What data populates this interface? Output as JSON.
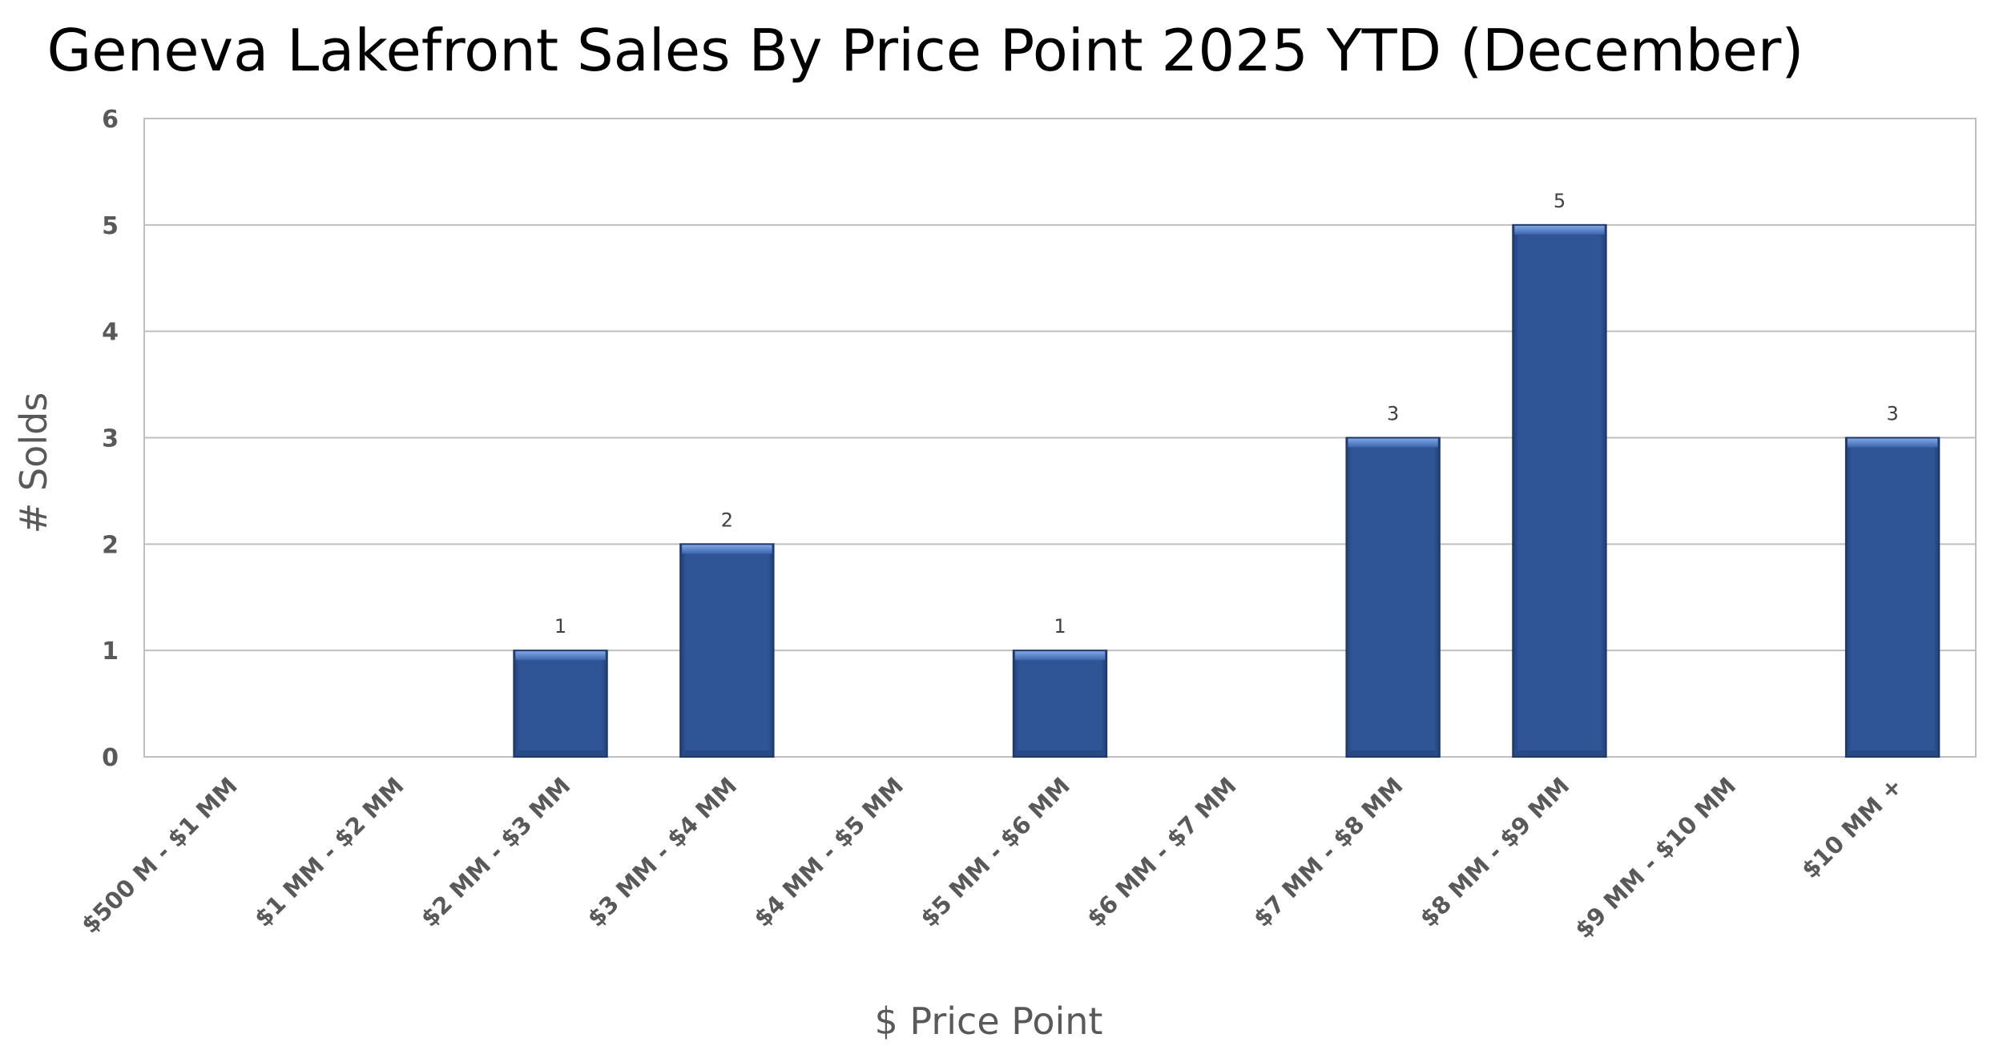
{
  "chart_data": {
    "type": "bar",
    "title": "Geneva Lakefront Sales By Price Point 2025 YTD (December)",
    "xlabel": "$ Price Point",
    "ylabel": "# Solds",
    "categories": [
      "$500 M - $1 MM",
      "$1 MM - $2 MM",
      "$2 MM - $3 MM",
      "$3 MM - $4 MM",
      "$4 MM - $5 MM",
      "$5 MM - $6 MM",
      "$6 MM - $7 MM",
      "$7 MM - $8 MM",
      "$8 MM - $9 MM",
      "$9 MM - $10 MM",
      "$10 MM +"
    ],
    "values": [
      0,
      0,
      1,
      2,
      0,
      1,
      0,
      3,
      5,
      0,
      3
    ],
    "ylim": [
      0,
      6
    ],
    "yticks": [
      "0",
      "1",
      "2",
      "3",
      "4",
      "5",
      "6"
    ],
    "grid": true,
    "legend": "none",
    "bar_color": "#2f5597"
  }
}
